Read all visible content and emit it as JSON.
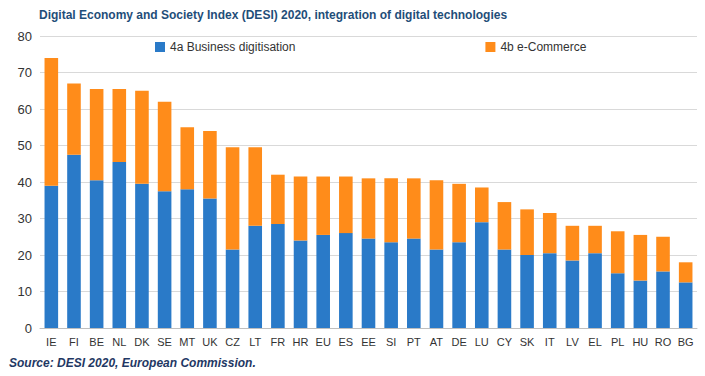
{
  "chart_data": {
    "type": "bar",
    "title": "Digital Economy and Society Index (DESI) 2020, integration of digital technologies",
    "annotations": [
      "Source: DESI 2020, European Commission."
    ],
    "categories": [
      "IE",
      "FI",
      "BE",
      "NL",
      "DK",
      "SE",
      "MT",
      "UK",
      "CZ",
      "LT",
      "FR",
      "HR",
      "EU",
      "ES",
      "EE",
      "SI",
      "PT",
      "AT",
      "DE",
      "LU",
      "CY",
      "SK",
      "IT",
      "LV",
      "EL",
      "PL",
      "HU",
      "RO",
      "BG"
    ],
    "series": [
      {
        "name": "4a Business digitisation",
        "color": "#2a7ac8",
        "values": [
          39,
          47.5,
          40.5,
          45.5,
          39.5,
          37.5,
          38,
          35.5,
          21.5,
          28,
          28.5,
          24,
          25.5,
          26,
          24.5,
          23.5,
          24.5,
          21.5,
          23.5,
          29,
          21.5,
          20,
          20.5,
          18.5,
          20.5,
          15,
          13,
          15.5,
          12.5
        ]
      },
      {
        "name": "4b e-Commerce",
        "color": "#ff8c1a",
        "values": [
          35,
          19.5,
          25,
          20,
          25.5,
          24.5,
          17,
          18.5,
          28,
          21.5,
          13.5,
          17.5,
          16,
          15.5,
          16.5,
          17.5,
          16.5,
          19,
          16,
          9.5,
          13,
          12.5,
          11,
          9.5,
          7.5,
          11.5,
          12.5,
          9.5,
          5.5
        ]
      }
    ],
    "stacked": true,
    "ylim": [
      0,
      80
    ],
    "yticks": [
      0,
      10,
      20,
      30,
      40,
      50,
      60,
      70,
      80
    ],
    "grid": true,
    "legend": "top"
  }
}
